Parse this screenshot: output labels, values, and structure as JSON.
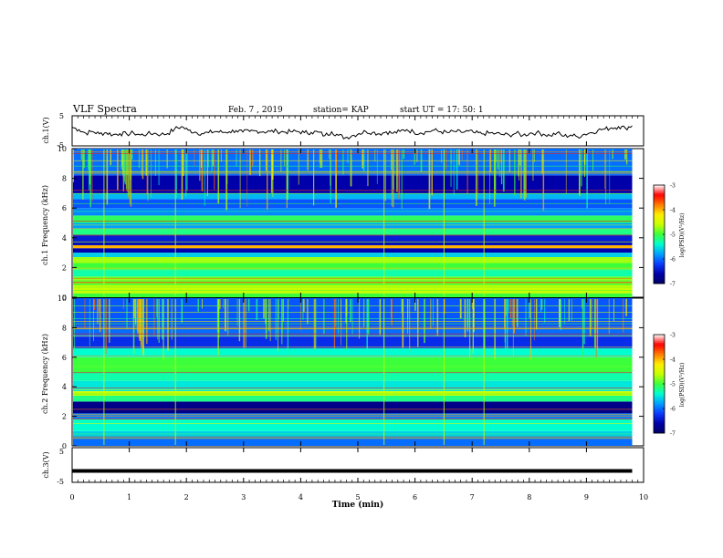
{
  "header": {
    "title": "VLF Spectra",
    "date": "Feb. 7 , 2019",
    "station": "station= KAP",
    "start": "start  UT =   17: 50: 1"
  },
  "colorbar_label": "log(PSD)(V²/Hz)",
  "colorbar_ticks": [
    "-3",
    "-4",
    "-5",
    "-6",
    "-7"
  ],
  "colors": {
    "colormap": [
      "#000066",
      "#0000aa",
      "#0a3cff",
      "#00a0ff",
      "#00ffd0",
      "#3cff3c",
      "#c8ff00",
      "#ffee00",
      "#ff7a00",
      "#ff0000",
      "#ffffff"
    ]
  },
  "chart_data": [
    {
      "type": "line",
      "name": "ch.1 waveform",
      "ylabel": "ch.1(V)",
      "yticks": [
        "5",
        "-5"
      ],
      "ylim": [
        -5,
        5
      ],
      "xlim": [
        0,
        10
      ],
      "y": [
        1.2,
        0.4,
        -0.8,
        -0.2,
        -1.0,
        -0.6,
        -1.3,
        -0.9,
        -1.1,
        -0.7,
        -1.4,
        -1.0,
        -0.8,
        -1.2,
        -0.9,
        0.6,
        1.4,
        0.2,
        -0.4,
        -0.9,
        -0.6,
        -0.2,
        -0.5,
        -0.3,
        0.1,
        -0.4,
        -0.2,
        0.0,
        -0.3,
        -0.2,
        -0.1,
        -0.4,
        -0.3,
        -0.2,
        -0.6,
        -0.5,
        -0.4,
        -1.6,
        -0.3,
        -1.5,
        -2.3,
        -1.6,
        -0.9,
        -0.2,
        -0.5,
        -1.0,
        -0.3,
        -0.8,
        -0.2,
        0.4,
        -0.4,
        -0.7,
        -0.3,
        0.2,
        -0.3,
        -0.6,
        -0.2,
        -0.5,
        -0.1,
        -0.7,
        -1.0,
        -0.7,
        -0.9,
        -1.2,
        -1.4,
        -0.8,
        -1.5,
        -0.8,
        -0.6,
        -1.1,
        -1.6,
        -0.7,
        -1.8,
        -1.4,
        -2.0,
        -1.1,
        -0.6,
        0.2,
        0.6,
        1.0,
        1.4,
        0.9,
        1.7
      ]
    },
    {
      "type": "heatmap",
      "name": "ch.1 spectrogram",
      "ylabel": "ch.1 Frequency (kHz)",
      "yticks": [
        "0",
        "2",
        "4",
        "6",
        "8",
        "10"
      ],
      "ylim": [
        0,
        10
      ],
      "xlim": [
        0,
        10
      ],
      "zlabel": "log(PSD)(V²/Hz)",
      "zlim": [
        -7,
        -3
      ],
      "bands": [
        [
          0.0,
          0.3,
          -5.0
        ],
        [
          0.3,
          0.8,
          -4.6
        ],
        [
          0.8,
          1.4,
          -4.9
        ],
        [
          1.4,
          1.9,
          -5.3
        ],
        [
          1.9,
          2.3,
          -5.0
        ],
        [
          2.3,
          2.7,
          -4.7
        ],
        [
          2.7,
          3.0,
          -5.6
        ],
        [
          3.0,
          3.3,
          -6.6
        ],
        [
          3.3,
          3.5,
          -4.0
        ],
        [
          3.5,
          3.8,
          -6.5
        ],
        [
          3.8,
          4.2,
          -6.4
        ],
        [
          4.2,
          4.6,
          -5.2
        ],
        [
          4.6,
          5.0,
          -5.8
        ],
        [
          5.0,
          5.5,
          -5.1
        ],
        [
          5.5,
          6.0,
          -5.9
        ],
        [
          6.0,
          6.6,
          -6.1
        ],
        [
          6.6,
          7.0,
          -5.7
        ],
        [
          7.0,
          8.2,
          -6.6
        ],
        [
          8.2,
          10.0,
          -6.0
        ]
      ]
    },
    {
      "type": "heatmap",
      "name": "ch.2 spectrogram",
      "ylabel": "ch.2 Frequency (kHz)",
      "yticks": [
        "0",
        "2",
        "4",
        "6",
        "8",
        "10"
      ],
      "ylim": [
        0,
        10
      ],
      "xlim": [
        0,
        10
      ],
      "zlabel": "log(PSD)(V²/Hz)",
      "zlim": [
        -7,
        -3
      ],
      "bands": [
        [
          0.0,
          0.5,
          -6.0
        ],
        [
          0.5,
          1.0,
          -5.6
        ],
        [
          1.0,
          1.8,
          -5.4
        ],
        [
          1.8,
          2.2,
          -5.9
        ],
        [
          2.2,
          3.0,
          -6.8
        ],
        [
          3.0,
          3.4,
          -5.2
        ],
        [
          3.4,
          3.7,
          -4.6
        ],
        [
          3.7,
          4.4,
          -5.5
        ],
        [
          4.4,
          5.0,
          -5.3
        ],
        [
          5.0,
          6.0,
          -5.0
        ],
        [
          6.0,
          6.6,
          -5.4
        ],
        [
          6.6,
          7.4,
          -6.3
        ],
        [
          7.4,
          8.0,
          -6.0
        ],
        [
          8.0,
          10.0,
          -6.1
        ]
      ]
    },
    {
      "type": "line",
      "name": "ch.3 waveform",
      "ylabel": "ch.3(V)",
      "yticks": [
        "5",
        "-5"
      ],
      "ylim": [
        -5,
        5
      ],
      "xlim": [
        0,
        10
      ],
      "xlabel": "Time  (min)",
      "xticks": [
        "0",
        "1",
        "2",
        "3",
        "4",
        "5",
        "6",
        "7",
        "8",
        "9",
        "10"
      ],
      "x": [
        0,
        9.8
      ],
      "y": [
        -1.7,
        -1.7
      ]
    }
  ]
}
